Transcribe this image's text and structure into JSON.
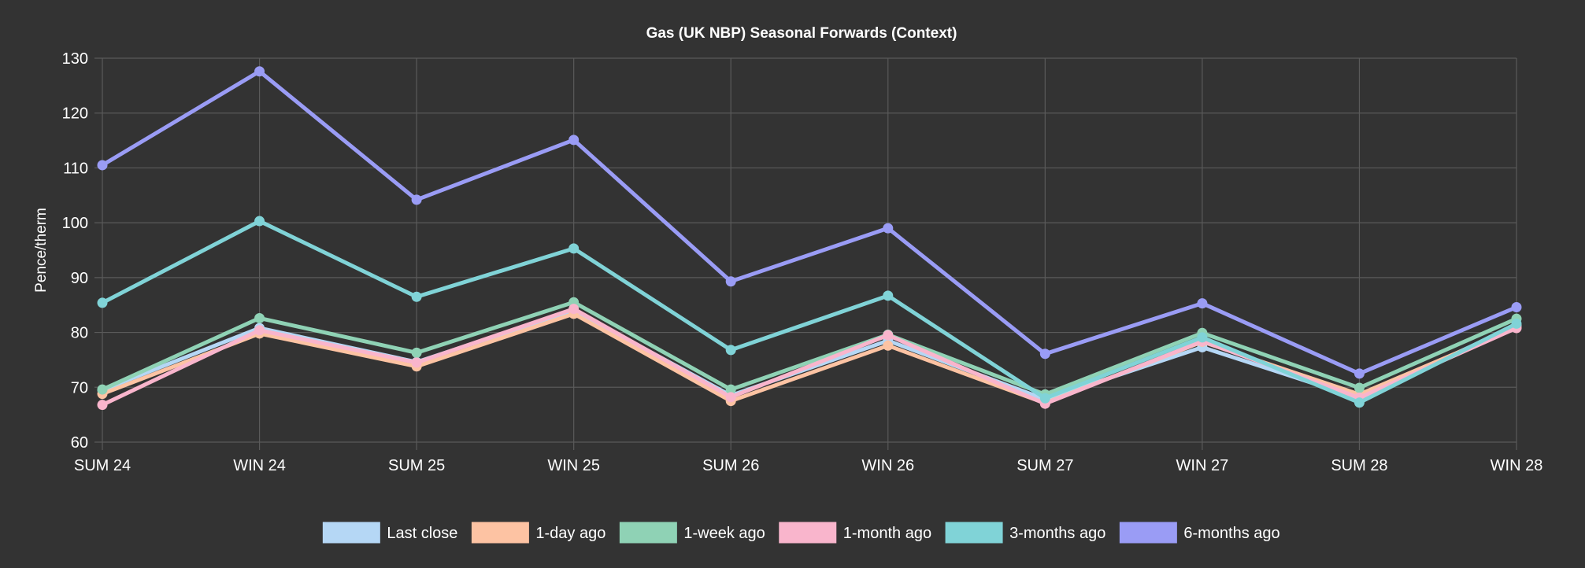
{
  "chart_data": {
    "type": "line",
    "title": "Gas (UK NBP) Seasonal Forwards (Context)",
    "xlabel": "",
    "ylabel": "Pence/therm",
    "categories": [
      "SUM 24",
      "WIN 24",
      "SUM 25",
      "WIN 25",
      "SUM 26",
      "WIN 26",
      "SUM 27",
      "WIN 27",
      "SUM 28",
      "WIN 28"
    ],
    "ylim": [
      60,
      130
    ],
    "yticks": [
      "60",
      "70",
      "80",
      "90",
      "100",
      "110",
      "120",
      "130"
    ],
    "grid": true,
    "legend_position": "bottom",
    "series": [
      {
        "name": "Last close",
        "color": "#b5d7f5",
        "values": [
          69.5,
          80.8,
          74.6,
          84.0,
          68.5,
          78.5,
          67.8,
          77.3,
          68.0,
          81.3
        ]
      },
      {
        "name": "1-day ago",
        "color": "#fdc3a3",
        "values": [
          68.8,
          79.8,
          73.8,
          83.4,
          67.5,
          77.6,
          67.1,
          78.3,
          68.7,
          80.9
        ]
      },
      {
        "name": "1-week ago",
        "color": "#8fd2b5",
        "values": [
          69.6,
          82.6,
          76.3,
          85.5,
          69.6,
          79.6,
          68.7,
          79.9,
          69.9,
          82.5
        ]
      },
      {
        "name": "1-month ago",
        "color": "#f9b5cc",
        "values": [
          66.8,
          80.4,
          74.5,
          84.3,
          68.2,
          79.5,
          67.0,
          78.4,
          68.1,
          80.8
        ]
      },
      {
        "name": "3-months ago",
        "color": "#80d3d7",
        "values": [
          85.4,
          100.3,
          86.5,
          95.3,
          76.8,
          86.7,
          68.0,
          79.1,
          67.2,
          81.6
        ]
      },
      {
        "name": "6-months ago",
        "color": "#9a9cf5",
        "values": [
          110.5,
          127.6,
          104.2,
          115.1,
          89.3,
          99.0,
          76.1,
          85.3,
          72.5,
          84.6
        ]
      }
    ]
  }
}
